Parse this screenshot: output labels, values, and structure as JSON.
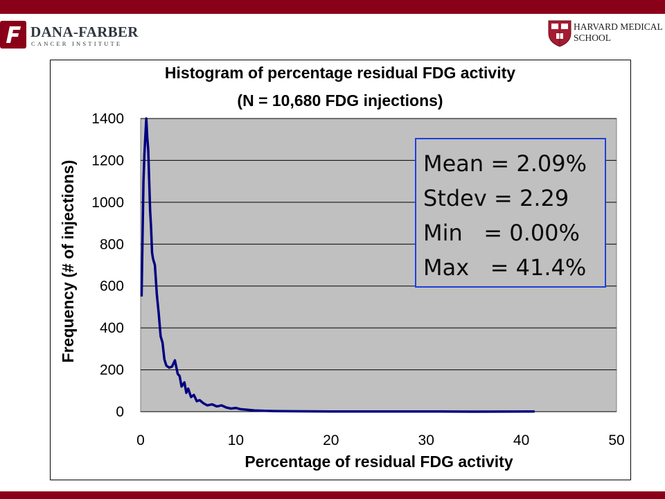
{
  "header": {
    "left_logo": {
      "name": "DANA-FARBER",
      "subtitle": "CANCER INSTITUTE"
    },
    "right_logo": {
      "line1": "HARVARD MEDICAL",
      "line2": "SCHOOL"
    },
    "brand_color": "#8b0019"
  },
  "chart_data": {
    "type": "line",
    "title_line1": "Histogram of percentage residual FDG activity",
    "title_line2": "(N = 10,680 FDG injections)",
    "xlabel": "Percentage of residual FDG activity",
    "ylabel": "Frequency (# of injections)",
    "xlim": [
      0,
      50
    ],
    "ylim": [
      0,
      1400
    ],
    "x_ticks": [
      "0",
      "10",
      "20",
      "30",
      "40",
      "50"
    ],
    "y_ticks": [
      "0",
      "200",
      "400",
      "600",
      "800",
      "1000",
      "1200",
      "1400"
    ],
    "grid": "horizontal",
    "plot_background": "#c0c0c0",
    "line_color": "#000080",
    "series": [
      {
        "x": [
          0.1,
          0.2,
          0.3,
          0.4,
          0.5,
          0.6,
          0.7,
          0.8,
          0.9,
          1.0,
          1.1,
          1.2,
          1.3,
          1.5,
          1.7,
          1.9,
          2.1,
          2.3,
          2.5,
          2.7,
          3.0,
          3.3,
          3.6,
          3.9,
          4.1,
          4.3,
          4.6,
          4.8,
          5.0,
          5.3,
          5.6,
          5.9,
          6.2,
          6.6,
          7.0,
          7.5,
          8.0,
          8.5,
          9.0,
          9.5,
          10.0,
          10.5,
          11.0,
          11.5,
          12.0,
          12.5,
          13.0,
          14.0,
          16.0,
          20.0,
          25.0,
          30.0,
          35.0,
          41.4
        ],
        "y": [
          550,
          820,
          1100,
          1230,
          1320,
          1400,
          1310,
          1250,
          1100,
          960,
          880,
          760,
          730,
          700,
          560,
          470,
          360,
          330,
          250,
          220,
          210,
          215,
          245,
          180,
          170,
          120,
          140,
          90,
          110,
          70,
          80,
          50,
          55,
          40,
          30,
          35,
          25,
          30,
          20,
          15,
          18,
          12,
          10,
          8,
          6,
          5,
          4,
          3,
          2,
          1,
          1,
          1,
          0,
          1
        ]
      }
    ],
    "annotation": {
      "lines": [
        "Mean = 2.09%",
        "Stdev = 2.29",
        "Min   = 0.00%",
        "Max   = 41.4%"
      ],
      "border_color": "#1f3fd8"
    }
  }
}
